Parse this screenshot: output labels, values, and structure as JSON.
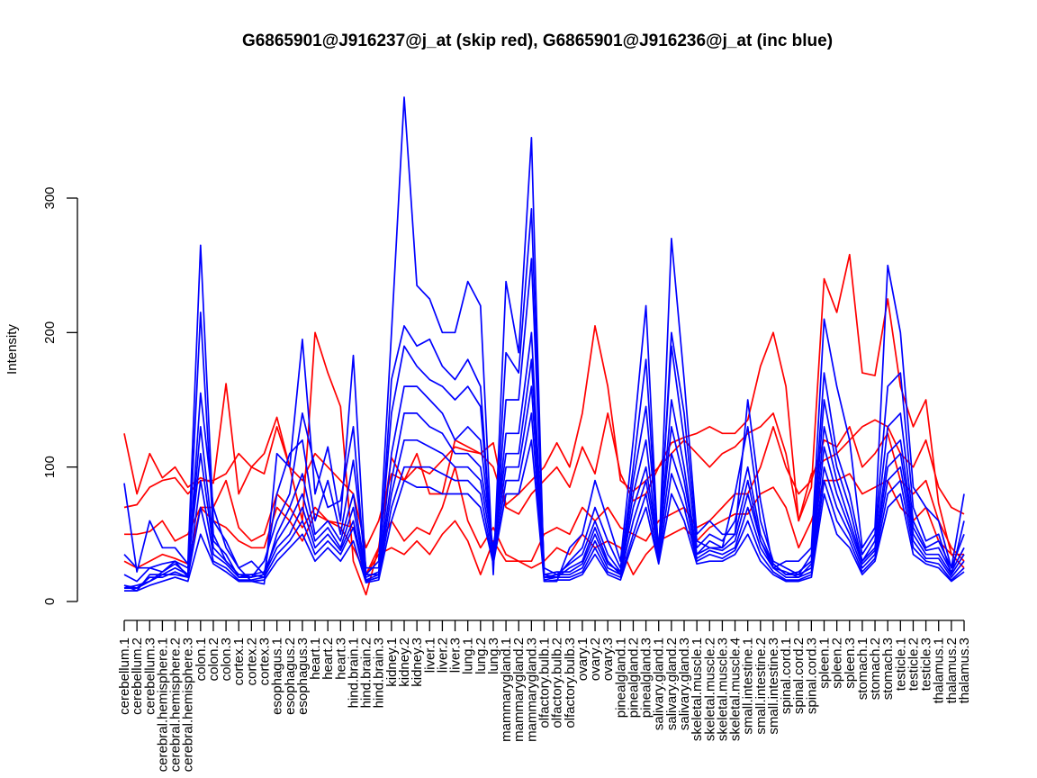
{
  "chart_data": {
    "type": "line",
    "title": "G6865901@J916237@j_at (skip red), G6865901@J916236@j_at (inc blue)",
    "ylabel": "Intensity",
    "xlabel": "",
    "ylim": [
      0,
      375
    ],
    "yticks": [
      0,
      100,
      200,
      300
    ],
    "grid": false,
    "legend": "none",
    "categories": [
      "cerebellum.1",
      "cerebellum.2",
      "cerebellum.3",
      "cerebral.hemisphere.1",
      "cerebral.hemisphere.2",
      "cerebral.hemisphere.3",
      "colon.1",
      "colon.2",
      "colon.3",
      "cortex.1",
      "cortex.2",
      "cortex.3",
      "esophagus.1",
      "esophagus.2",
      "esophagus.3",
      "heart.1",
      "heart.2",
      "heart.3",
      "hind.brain.1",
      "hind.brain.2",
      "hind.brain.3",
      "kidney.1",
      "kidney.2",
      "kidney.3",
      "liver.1",
      "liver.2",
      "liver.3",
      "lung.1",
      "lung.2",
      "lung.3",
      "mammarygland.1",
      "mammarygland.2",
      "mammarygland.3",
      "olfactory.bulb.1",
      "olfactory.bulb.2",
      "olfactory.bulb.3",
      "ovary.1",
      "ovary.2",
      "ovary.3",
      "pinealgland.1",
      "pinealgland.2",
      "pinealgland.3",
      "salivary.gland.1",
      "salivary.gland.2",
      "salivary.gland.3",
      "skeletal.muscle.1",
      "skeletal.muscle.2",
      "skeletal.muscle.3",
      "skeletal.muscle.4",
      "small.intestine.1",
      "small.intestine.2",
      "small.intestine.3",
      "spinal.cord.1",
      "spinal.cord.2",
      "spinal.cord.3",
      "spleen.1",
      "spleen.2",
      "spleen.3",
      "stomach.1",
      "stomach.2",
      "stomach.3",
      "testicle.1",
      "testicle.2",
      "testicle.3",
      "thalamus.1",
      "thalamus.2",
      "thalamus.3"
    ],
    "colors": {
      "skip": "#ff0000",
      "inc": "#0000ff"
    },
    "series": [
      {
        "group": "skip",
        "values": [
          125,
          80,
          110,
          92,
          100,
          85,
          92,
          88,
          162,
          80,
          100,
          110,
          137,
          100,
          60,
          200,
          170,
          145,
          30,
          5,
          40,
          107,
          90,
          110,
          80,
          80,
          120,
          115,
          110,
          118,
          72,
          80,
          90,
          100,
          118,
          100,
          140,
          205,
          160,
          90,
          82,
          90,
          100,
          118,
          122,
          125,
          130,
          125,
          125,
          135,
          175,
          200,
          160,
          60,
          85,
          240,
          215,
          258,
          170,
          168,
          225,
          160,
          130,
          150,
          73,
          35,
          25
        ]
      },
      {
        "group": "skip",
        "values": [
          70,
          72,
          85,
          90,
          92,
          80,
          90,
          90,
          95,
          110,
          100,
          95,
          130,
          100,
          90,
          110,
          100,
          90,
          80,
          40,
          60,
          95,
          90,
          100,
          95,
          105,
          115,
          112,
          110,
          100,
          70,
          65,
          80,
          90,
          100,
          85,
          115,
          95,
          140,
          95,
          75,
          80,
          100,
          110,
          120,
          110,
          100,
          110,
          115,
          125,
          130,
          140,
          110,
          60,
          95,
          105,
          110,
          120,
          130,
          135,
          130,
          110,
          100,
          120,
          85,
          70,
          65
        ]
      },
      {
        "group": "skip",
        "values": [
          50,
          50,
          52,
          60,
          45,
          50,
          70,
          70,
          90,
          55,
          45,
          50,
          80,
          70,
          55,
          70,
          60,
          58,
          55,
          20,
          40,
          60,
          45,
          55,
          50,
          70,
          100,
          60,
          40,
          55,
          35,
          30,
          30,
          50,
          55,
          50,
          70,
          60,
          70,
          55,
          50,
          45,
          60,
          65,
          70,
          55,
          60,
          70,
          80,
          80,
          100,
          130,
          100,
          80,
          90,
          120,
          115,
          130,
          100,
          110,
          125,
          90,
          80,
          90,
          60,
          40,
          30
        ]
      },
      {
        "group": "skip",
        "values": [
          30,
          25,
          30,
          35,
          32,
          28,
          70,
          60,
          55,
          45,
          40,
          40,
          70,
          60,
          45,
          65,
          60,
          55,
          40,
          20,
          35,
          40,
          35,
          45,
          35,
          50,
          60,
          45,
          20,
          45,
          30,
          30,
          25,
          30,
          40,
          35,
          50,
          40,
          45,
          40,
          20,
          35,
          45,
          50,
          55,
          45,
          55,
          60,
          65,
          65,
          80,
          85,
          70,
          40,
          60,
          90,
          90,
          95,
          80,
          85,
          90,
          70,
          60,
          70,
          45,
          35,
          35
        ]
      },
      {
        "group": "inc",
        "values": [
          88,
          22,
          60,
          40,
          40,
          28,
          265,
          60,
          45,
          25,
          15,
          13,
          110,
          100,
          195,
          80,
          115,
          60,
          183,
          20,
          30,
          200,
          375,
          235,
          225,
          200,
          200,
          238,
          220,
          20,
          238,
          185,
          345,
          15,
          15,
          40,
          50,
          90,
          60,
          30,
          120,
          220,
          30,
          270,
          165,
          50,
          60,
          50,
          50,
          150,
          75,
          25,
          30,
          30,
          40,
          210,
          160,
          120,
          40,
          55,
          250,
          200,
          85,
          70,
          60,
          25,
          80
        ]
      },
      {
        "group": "inc",
        "values": [
          10,
          10,
          15,
          22,
          28,
          20,
          215,
          50,
          30,
          20,
          18,
          30,
          60,
          80,
          140,
          100,
          70,
          75,
          130,
          15,
          18,
          165,
          205,
          190,
          195,
          175,
          165,
          180,
          160,
          25,
          185,
          170,
          292,
          20,
          18,
          30,
          40,
          70,
          45,
          25,
          100,
          180,
          30,
          200,
          140,
          45,
          40,
          40,
          80,
          130,
          60,
          30,
          25,
          20,
          35,
          170,
          110,
          80,
          35,
          50,
          160,
          170,
          70,
          45,
          50,
          20,
          60
        ]
      },
      {
        "group": "inc",
        "values": [
          35,
          25,
          25,
          28,
          30,
          18,
          155,
          70,
          40,
          25,
          30,
          20,
          80,
          110,
          120,
          60,
          90,
          50,
          105,
          25,
          25,
          140,
          190,
          175,
          165,
          160,
          150,
          160,
          145,
          30,
          150,
          150,
          255,
          25,
          20,
          28,
          35,
          60,
          35,
          22,
          90,
          145,
          40,
          190,
          120,
          40,
          50,
          45,
          60,
          100,
          50,
          28,
          20,
          22,
          30,
          150,
          100,
          70,
          30,
          45,
          130,
          140,
          60,
          40,
          45,
          25,
          50
        ]
      },
      {
        "group": "inc",
        "values": [
          12,
          8,
          20,
          20,
          25,
          20,
          130,
          45,
          35,
          18,
          20,
          18,
          50,
          70,
          95,
          50,
          60,
          45,
          80,
          20,
          20,
          110,
          160,
          160,
          150,
          140,
          120,
          130,
          120,
          35,
          125,
          125,
          200,
          18,
          18,
          25,
          30,
          55,
          30,
          20,
          80,
          120,
          35,
          150,
          100,
          35,
          45,
          40,
          50,
          90,
          45,
          25,
          22,
          18,
          28,
          130,
          90,
          60,
          30,
          40,
          110,
          120,
          55,
          38,
          40,
          22,
          40
        ]
      },
      {
        "group": "inc",
        "values": [
          20,
          15,
          25,
          22,
          30,
          25,
          110,
          40,
          30,
          20,
          20,
          22,
          45,
          60,
          80,
          45,
          55,
          40,
          70,
          18,
          22,
          90,
          140,
          140,
          130,
          125,
          110,
          110,
          100,
          40,
          110,
          110,
          180,
          20,
          22,
          22,
          28,
          50,
          28,
          22,
          70,
          100,
          38,
          130,
          90,
          35,
          40,
          38,
          45,
          80,
          45,
          28,
          20,
          20,
          25,
          115,
          80,
          55,
          28,
          38,
          100,
          110,
          50,
          35,
          35,
          20,
          35
        ]
      },
      {
        "group": "inc",
        "values": [
          12,
          10,
          18,
          18,
          22,
          18,
          90,
          35,
          28,
          18,
          18,
          20,
          40,
          50,
          70,
          40,
          50,
          38,
          60,
          16,
          20,
          80,
          120,
          120,
          115,
          110,
          100,
          100,
          90,
          35,
          100,
          100,
          160,
          18,
          20,
          20,
          25,
          45,
          25,
          20,
          60,
          90,
          35,
          110,
          80,
          32,
          38,
          35,
          40,
          70,
          40,
          25,
          18,
          18,
          22,
          100,
          70,
          50,
          25,
          35,
          90,
          100,
          45,
          32,
          32,
          18,
          30
        ]
      },
      {
        "group": "inc",
        "values": [
          10,
          12,
          15,
          20,
          20,
          18,
          70,
          30,
          25,
          16,
          16,
          18,
          35,
          45,
          60,
          35,
          45,
          35,
          55,
          15,
          18,
          70,
          100,
          100,
          100,
          95,
          90,
          90,
          80,
          30,
          90,
          90,
          140,
          16,
          18,
          18,
          22,
          40,
          22,
          18,
          50,
          80,
          30,
          95,
          70,
          30,
          35,
          32,
          38,
          60,
          35,
          22,
          16,
          16,
          20,
          90,
          60,
          45,
          22,
          32,
          80,
          90,
          40,
          30,
          28,
          16,
          25
        ]
      },
      {
        "group": "inc",
        "values": [
          8,
          8,
          12,
          15,
          18,
          15,
          50,
          28,
          22,
          15,
          15,
          16,
          30,
          40,
          50,
          30,
          40,
          30,
          45,
          14,
          16,
          60,
          90,
          85,
          85,
          80,
          80,
          80,
          70,
          28,
          80,
          80,
          120,
          15,
          16,
          16,
          20,
          35,
          20,
          16,
          45,
          70,
          28,
          80,
          60,
          28,
          30,
          30,
          35,
          50,
          30,
          20,
          15,
          15,
          18,
          80,
          50,
          40,
          20,
          30,
          70,
          80,
          35,
          28,
          25,
          15,
          22
        ]
      }
    ]
  }
}
